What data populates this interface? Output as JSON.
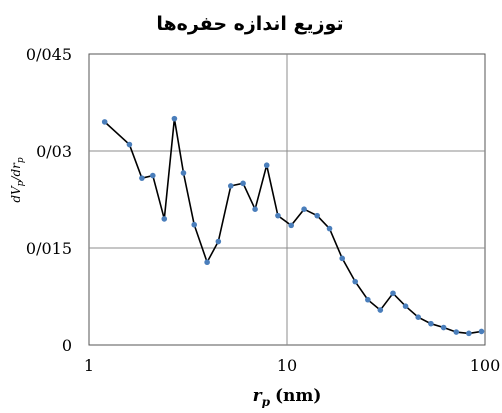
{
  "chart_data": {
    "type": "line",
    "title": "توزیع اندازه حفره‌ها",
    "xlabel": "r",
    "xlabel_sub": "p",
    "xlabel_unit": "(nm)",
    "ylabel": "dV",
    "ylabel_sub": "p",
    "ylabel_mid": "/dr",
    "ylabel_sub2": "p",
    "x_scale": "log",
    "xlim": [
      1,
      100
    ],
    "ylim": [
      0,
      0.045
    ],
    "x_ticks": [
      {
        "value": 1,
        "label": "1"
      },
      {
        "value": 10,
        "label": "10"
      },
      {
        "value": 100,
        "label": "100"
      }
    ],
    "y_ticks": [
      {
        "value": 0,
        "label": "0"
      },
      {
        "value": 0.015,
        "label": "0/015"
      },
      {
        "value": 0.03,
        "label": "0/03"
      },
      {
        "value": 0.045,
        "label": "0/045"
      }
    ],
    "grid": true,
    "line_color": "#000000",
    "marker_color": "#4a7ebb",
    "series": [
      {
        "x": [
          1.2,
          1.6,
          1.85,
          2.1,
          2.4,
          2.7,
          3.0,
          3.4,
          3.95,
          4.5,
          5.2,
          6.0,
          6.9,
          7.9,
          9.0,
          10.5,
          12.2,
          14.2,
          16.4,
          19.0,
          22.1,
          25.6,
          29.6,
          34.3,
          39.7,
          46.0,
          53.3,
          61.8,
          71.6,
          82.9,
          96.0
        ],
        "y": [
          0.0345,
          0.031,
          0.0258,
          0.0262,
          0.0195,
          0.035,
          0.0266,
          0.0186,
          0.0128,
          0.016,
          0.0246,
          0.025,
          0.021,
          0.0278,
          0.02,
          0.0185,
          0.021,
          0.02,
          0.018,
          0.0134,
          0.0098,
          0.007,
          0.0054,
          0.008,
          0.006,
          0.0043,
          0.0033,
          0.0027,
          0.002,
          0.0018,
          0.0021
        ]
      }
    ]
  }
}
